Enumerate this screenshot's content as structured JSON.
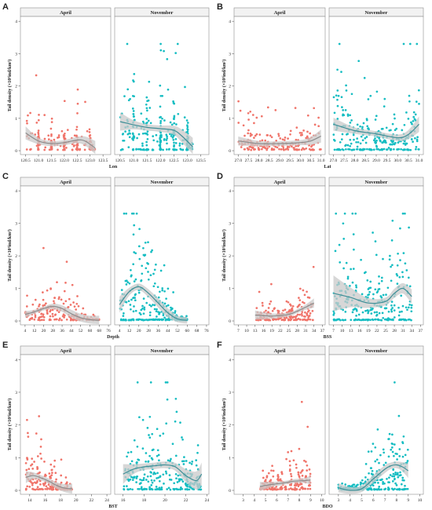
{
  "colors": {
    "april": "#F0746A",
    "november": "#16BDC2",
    "ribbon": "#C9C9C9",
    "smooth_april": "#8C8C8C",
    "smooth_november": "#3E8E96",
    "panel_border": "#8E8E8E",
    "strip_fill": "#F2F2F2"
  },
  "chart_data": [
    {
      "panel": "A",
      "type": "scatter",
      "xlabel": "Lon",
      "ylabel": "Tail density (×10³ind/km²)",
      "facets": [
        "April",
        "November"
      ],
      "x_ticks": [
        120.5,
        121.0,
        121.5,
        122.0,
        122.5,
        123.0,
        123.5
      ],
      "x_tick_labels": [
        "120.5",
        "121.0",
        "121.5",
        "122.0",
        "122.5",
        "123.0",
        "123.5"
      ],
      "xlim": [
        120.3,
        123.8
      ],
      "y_ticks": [
        0,
        1,
        2,
        3,
        4
      ],
      "y_tick_labels": [
        "0",
        "1",
        "2",
        "3",
        "4"
      ],
      "ylim": [
        -0.12,
        4.15
      ],
      "smooth": {
        "April": [
          [
            120.5,
            0.55
          ],
          [
            121.0,
            0.3
          ],
          [
            121.5,
            0.22
          ],
          [
            122.0,
            0.25
          ],
          [
            122.5,
            0.33
          ],
          [
            122.8,
            0.3
          ],
          [
            123.2,
            0.08
          ]
        ],
        "November": [
          [
            120.5,
            0.9
          ],
          [
            121.0,
            0.8
          ],
          [
            121.5,
            0.72
          ],
          [
            122.0,
            0.68
          ],
          [
            122.5,
            0.63
          ],
          [
            122.8,
            0.45
          ],
          [
            123.2,
            0.12
          ]
        ]
      },
      "ribbon_hw": {
        "April": [
          0.2,
          0.1,
          0.08,
          0.08,
          0.1,
          0.14,
          0.22
        ],
        "November": [
          0.28,
          0.14,
          0.1,
          0.1,
          0.14,
          0.2,
          0.28
        ]
      }
    },
    {
      "panel": "B",
      "type": "scatter",
      "xlabel": "Lat",
      "ylabel": "Tail density (×10³ind/km²)",
      "facets": [
        "April",
        "November"
      ],
      "x_ticks": [
        27.0,
        27.5,
        28.0,
        28.5,
        29.0,
        29.5,
        30.0,
        30.5,
        31.0
      ],
      "x_tick_labels": [
        "27.0",
        "27.5",
        "28.0",
        "28.5",
        "29.0",
        "29.5",
        "30.0",
        "30.5",
        "31.0"
      ],
      "xlim": [
        26.8,
        31.2
      ],
      "y_ticks": [
        0,
        1,
        2,
        3,
        4
      ],
      "y_tick_labels": [
        "0",
        "1",
        "2",
        "3",
        "4"
      ],
      "ylim": [
        -0.12,
        4.15
      ],
      "smooth": {
        "April": [
          [
            27.0,
            0.3
          ],
          [
            28.0,
            0.22
          ],
          [
            29.0,
            0.22
          ],
          [
            30.0,
            0.25
          ],
          [
            30.5,
            0.3
          ],
          [
            31.0,
            0.45
          ]
        ],
        "November": [
          [
            27.0,
            0.82
          ],
          [
            28.0,
            0.62
          ],
          [
            29.0,
            0.52
          ],
          [
            30.0,
            0.4
          ],
          [
            30.5,
            0.5
          ],
          [
            31.0,
            0.82
          ]
        ]
      },
      "ribbon_hw": {
        "April": [
          0.14,
          0.08,
          0.07,
          0.08,
          0.12,
          0.2
        ],
        "November": [
          0.2,
          0.1,
          0.08,
          0.1,
          0.14,
          0.24
        ]
      }
    },
    {
      "panel": "C",
      "type": "scatter",
      "xlabel": "Depth",
      "ylabel": "Tail density (×10³ind/km²)",
      "facets": [
        "April",
        "November"
      ],
      "x_ticks": [
        4,
        12,
        20,
        28,
        36,
        44,
        52,
        60,
        68,
        76
      ],
      "x_tick_labels": [
        "4",
        "12",
        "20",
        "28",
        "36",
        "44",
        "52",
        "60",
        "68",
        "76"
      ],
      "xlim": [
        0,
        78
      ],
      "y_ticks": [
        0,
        1,
        2,
        3,
        4
      ],
      "y_tick_labels": [
        "0",
        "1",
        "2",
        "3",
        "4"
      ],
      "ylim": [
        -0.12,
        4.15
      ],
      "smooth": {
        "April": [
          [
            4,
            0.2
          ],
          [
            12,
            0.28
          ],
          [
            20,
            0.38
          ],
          [
            28,
            0.45
          ],
          [
            36,
            0.38
          ],
          [
            44,
            0.22
          ],
          [
            52,
            0.1
          ],
          [
            60,
            0.04
          ],
          [
            68,
            0.02
          ]
        ],
        "November": [
          [
            4,
            0.5
          ],
          [
            12,
            0.9
          ],
          [
            20,
            1.05
          ],
          [
            28,
            0.85
          ],
          [
            36,
            0.55
          ],
          [
            44,
            0.25
          ],
          [
            52,
            0.06
          ],
          [
            60,
            0.02
          ]
        ]
      },
      "ribbon_hw": {
        "April": [
          0.1,
          0.06,
          0.06,
          0.08,
          0.1,
          0.12,
          0.12,
          0.12,
          0.14
        ],
        "November": [
          0.25,
          0.12,
          0.1,
          0.12,
          0.14,
          0.14,
          0.1,
          0.1
        ]
      }
    },
    {
      "panel": "D",
      "type": "scatter",
      "xlabel": "BSS",
      "ylabel": "Tail density (×10³ind/km²)",
      "facets": [
        "April",
        "November"
      ],
      "x_ticks": [
        7,
        10,
        13,
        16,
        19,
        22,
        25,
        28,
        31,
        34,
        37
      ],
      "x_tick_labels": [
        "7",
        "10",
        "13",
        "16",
        "19",
        "22",
        "25",
        "28",
        "31",
        "34",
        "37"
      ],
      "xlim": [
        5.5,
        38
      ],
      "y_ticks": [
        0,
        1,
        2,
        3,
        4
      ],
      "y_tick_labels": [
        "0",
        "1",
        "2",
        "3",
        "4"
      ],
      "ylim": [
        -0.12,
        4.15
      ],
      "smooth": {
        "April": [
          [
            13,
            0.18
          ],
          [
            19,
            0.15
          ],
          [
            25,
            0.2
          ],
          [
            28,
            0.3
          ],
          [
            31,
            0.42
          ],
          [
            34,
            0.55
          ]
        ],
        "November": [
          [
            7,
            0.85
          ],
          [
            13,
            0.72
          ],
          [
            19,
            0.55
          ],
          [
            25,
            0.6
          ],
          [
            28,
            0.85
          ],
          [
            31,
            1.0
          ],
          [
            34,
            0.75
          ]
        ]
      },
      "ribbon_hw": {
        "April": [
          0.14,
          0.08,
          0.06,
          0.06,
          0.08,
          0.14
        ],
        "November": [
          0.55,
          0.3,
          0.15,
          0.12,
          0.14,
          0.16,
          0.22
        ]
      }
    },
    {
      "panel": "E",
      "type": "scatter",
      "xlabel": "BST",
      "ylabel": "Tail density (×10³ind/km²)",
      "facets": [
        "April",
        "November"
      ],
      "x_ticks": [
        14,
        16,
        18,
        20,
        22,
        24
      ],
      "x_tick_labels": [
        "14",
        "16",
        "18",
        "20",
        "22",
        "24"
      ],
      "xlim": [
        12.8,
        24.5
      ],
      "y_ticks": [
        0,
        1,
        2,
        3,
        4
      ],
      "y_tick_labels": [
        "0",
        "1",
        "2",
        "3",
        "4"
      ],
      "ylim": [
        -0.12,
        4.15
      ],
      "x_ticks_2": [
        16,
        18,
        20,
        22,
        24
      ],
      "x_tick_labels_2": [
        "16",
        "18",
        "20",
        "22",
        "24"
      ],
      "xlim_2": [
        15.2,
        24.2
      ],
      "smooth": {
        "April": [
          [
            13.5,
            0.4
          ],
          [
            14.5,
            0.45
          ],
          [
            15.5,
            0.38
          ],
          [
            16.5,
            0.28
          ],
          [
            17.5,
            0.15
          ],
          [
            18.5,
            0.07
          ],
          [
            19.5,
            0.05
          ]
        ],
        "November": [
          [
            16,
            0.5
          ],
          [
            17,
            0.65
          ],
          [
            18,
            0.72
          ],
          [
            19,
            0.75
          ],
          [
            20,
            0.78
          ],
          [
            21,
            0.72
          ],
          [
            22,
            0.45
          ],
          [
            23,
            0.3
          ],
          [
            23.5,
            0.5
          ]
        ]
      },
      "ribbon_hw": {
        "April": [
          0.18,
          0.1,
          0.08,
          0.08,
          0.1,
          0.12,
          0.16
        ],
        "November": [
          0.3,
          0.15,
          0.1,
          0.1,
          0.1,
          0.12,
          0.2,
          0.28,
          0.35
        ]
      }
    },
    {
      "panel": "F",
      "type": "scatter",
      "xlabel": "BDO",
      "ylabel": "Tail density (×10³ind/km²)",
      "facets": [
        "April",
        "November"
      ],
      "x_ticks": [
        3,
        4,
        5,
        6,
        7,
        8,
        9,
        10
      ],
      "x_tick_labels": [
        "3",
        "4",
        "5",
        "6",
        "7",
        "8",
        "9",
        "10"
      ],
      "xlim": [
        2.2,
        10.3
      ],
      "y_ticks": [
        0,
        1,
        2,
        3,
        4
      ],
      "y_tick_labels": [
        "0",
        "1",
        "2",
        "3",
        "4"
      ],
      "ylim": [
        -0.12,
        4.15
      ],
      "smooth": {
        "April": [
          [
            4.5,
            0.12
          ],
          [
            5.5,
            0.18
          ],
          [
            6.5,
            0.22
          ],
          [
            7.5,
            0.28
          ],
          [
            8.5,
            0.3
          ],
          [
            9.0,
            0.32
          ]
        ],
        "November": [
          [
            3.0,
            0.08
          ],
          [
            4.0,
            0.0
          ],
          [
            5.0,
            0.05
          ],
          [
            6.0,
            0.35
          ],
          [
            7.0,
            0.65
          ],
          [
            7.5,
            0.75
          ],
          [
            8.0,
            0.78
          ],
          [
            8.5,
            0.72
          ],
          [
            9.0,
            0.6
          ]
        ]
      },
      "ribbon_hw": {
        "April": [
          0.14,
          0.08,
          0.06,
          0.06,
          0.08,
          0.14
        ],
        "November": [
          0.14,
          0.1,
          0.1,
          0.12,
          0.12,
          0.1,
          0.1,
          0.14,
          0.22
        ]
      }
    }
  ]
}
